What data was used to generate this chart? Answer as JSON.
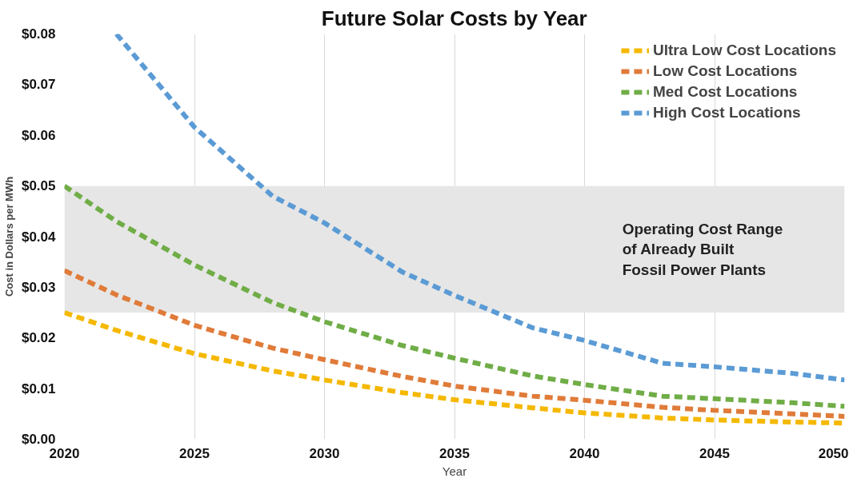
{
  "chart_data": {
    "type": "line",
    "title": "Future Solar Costs by Year",
    "xlabel": "Year",
    "ylabel": "Cost in Dollars per MWh",
    "x": [
      2020,
      2022,
      2025,
      2028,
      2030,
      2033,
      2035,
      2038,
      2040,
      2043,
      2045,
      2048,
      2050
    ],
    "series": [
      {
        "name": "Ultra Low Cost Locations",
        "color": "#f5b800",
        "values": [
          0.025,
          0.0215,
          0.0169,
          0.0135,
          0.0117,
          0.0092,
          0.0078,
          0.0062,
          0.0052,
          0.0042,
          0.0038,
          0.0034,
          0.0032
        ]
      },
      {
        "name": "Low Cost Locations",
        "color": "#e07b39",
        "values": [
          0.0333,
          0.0285,
          0.0225,
          0.018,
          0.0157,
          0.0124,
          0.0105,
          0.0085,
          0.0077,
          0.0063,
          0.0057,
          0.005,
          0.0045
        ]
      },
      {
        "name": "Med Cost Locations",
        "color": "#70ad47",
        "values": [
          0.05,
          0.043,
          0.0344,
          0.027,
          0.0232,
          0.0185,
          0.016,
          0.0125,
          0.0108,
          0.0085,
          0.008,
          0.0072,
          0.0065
        ]
      },
      {
        "name": "High Cost Locations",
        "color": "#5b9bd5",
        "values": [
          null,
          0.08,
          0.0616,
          0.048,
          0.0427,
          0.033,
          0.0284,
          0.022,
          0.0195,
          0.015,
          0.0143,
          0.013,
          0.0117
        ]
      }
    ],
    "xlim": [
      2020,
      2050
    ],
    "xticks": [
      2020,
      2025,
      2030,
      2035,
      2040,
      2045,
      2050
    ],
    "ylim": [
      0,
      0.08
    ],
    "yticks": [
      {
        "value": 0,
        "label": "$0.00"
      },
      {
        "value": 0.01,
        "label": "$0.01"
      },
      {
        "value": 0.02,
        "label": "$0.02"
      },
      {
        "value": 0.03,
        "label": "$0.03"
      },
      {
        "value": 0.04,
        "label": "$0.04"
      },
      {
        "value": 0.05,
        "label": "$0.05"
      },
      {
        "value": 0.06,
        "label": "$0.06"
      },
      {
        "value": 0.07,
        "label": "$0.07"
      },
      {
        "value": 0.08,
        "label": "$0.08"
      }
    ],
    "bands": [
      {
        "axis": "y",
        "from": 0.025,
        "to": 0.05,
        "label": "Operating Cost Range\nof Already Built\nFossil Power Plants",
        "color": "#e6e6e6"
      }
    ],
    "grid": "x",
    "legend": "top right",
    "line_style": "dashed",
    "marker": "none"
  }
}
